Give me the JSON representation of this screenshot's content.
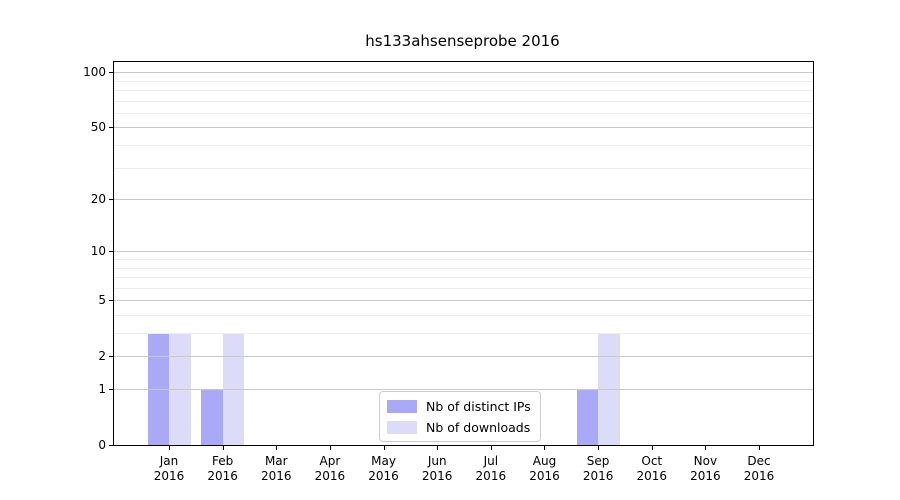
{
  "chart_data": {
    "type": "bar",
    "title": "hs133ahsenseprobe 2016",
    "scale": "log10(1+x)",
    "categories": [
      "Jan",
      "Feb",
      "Mar",
      "Apr",
      "May",
      "Jun",
      "Jul",
      "Aug",
      "Sep",
      "Oct",
      "Nov",
      "Dec"
    ],
    "category_year": "2016",
    "series": [
      {
        "name": "Nb of distinct IPs",
        "color": "#a9a9f8",
        "values": [
          3,
          1,
          0,
          0,
          0,
          0,
          0,
          0,
          1,
          0,
          0,
          0
        ]
      },
      {
        "name": "Nb of downloads",
        "color": "#dcdcf9",
        "values": [
          3,
          3,
          0,
          0,
          0,
          0,
          0,
          0,
          3,
          0,
          0,
          0
        ]
      }
    ],
    "yticks": [
      0,
      1,
      2,
      5,
      10,
      20,
      50,
      100
    ],
    "yticks_minor": [
      3,
      4,
      6,
      7,
      8,
      9,
      30,
      40,
      60,
      70,
      80,
      90
    ],
    "ylim": [
      0,
      113
    ],
    "grid": {
      "major_color": "#c9c9c9",
      "minor_color": "#ededed"
    },
    "legend": {
      "position": "lower-center",
      "border_color": "#cccccc"
    }
  }
}
